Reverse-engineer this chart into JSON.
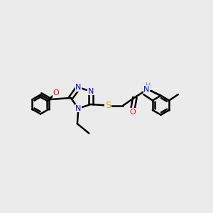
{
  "bg_color": "#ebebeb",
  "bond_color": "#000000",
  "bond_width": 1.8,
  "atom_colors": {
    "N": "#0000ff",
    "O": "#ff0000",
    "S": "#ccaa00",
    "H": "#6699aa",
    "C": "#000000"
  },
  "font_size": 8.0,
  "fig_size": [
    3.0,
    3.0
  ],
  "dpi": 100
}
